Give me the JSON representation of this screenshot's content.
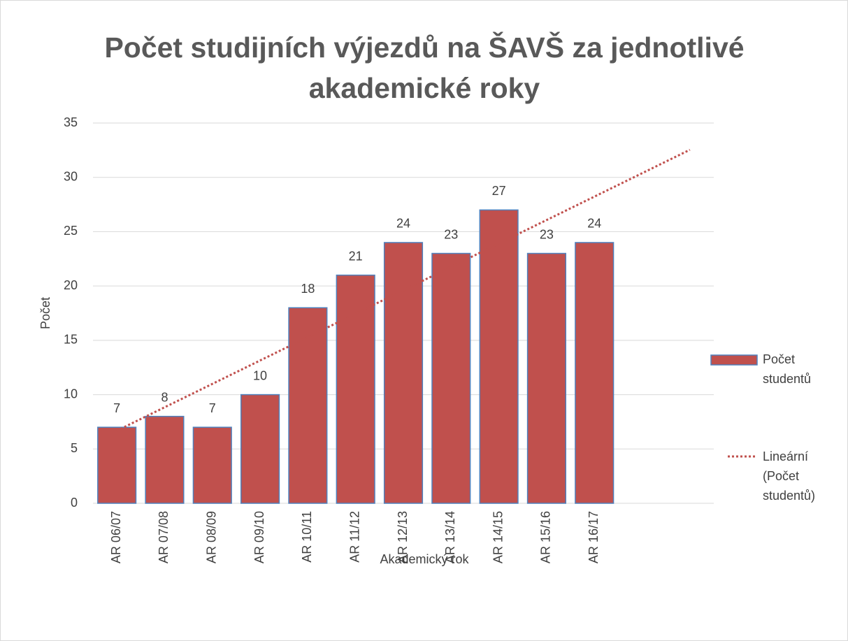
{
  "chart_data": {
    "type": "bar",
    "title": "Počet studijních výjezdů na ŠAVŠ za jednotlivé akademické roky",
    "x_label": "Akademický rok",
    "y_label": "Počet",
    "categories": [
      "AR 06/07",
      "AR 07/08",
      "AR 08/09",
      "AR 09/10",
      "AR 10/11",
      "AR 11/12",
      "AR 12/13",
      "AR 13/14",
      "AR 14/15",
      "AR 15/16",
      "AR 16/17",
      null,
      null
    ],
    "series": [
      {
        "name": "Počet studentů",
        "color": "#c0504d",
        "edge_color": "#4f81bd",
        "values": [
          7,
          8,
          7,
          10,
          18,
          21,
          24,
          23,
          27,
          23,
          24,
          null,
          null
        ]
      }
    ],
    "trendline": {
      "name": "Lineární (Počet studentů)",
      "kind": "linear",
      "color": "#c0504d"
    },
    "ylim": [
      0,
      35
    ],
    "yticks": [
      0,
      5,
      10,
      15,
      20,
      25,
      30,
      35
    ],
    "grid": true,
    "legend": "right"
  }
}
